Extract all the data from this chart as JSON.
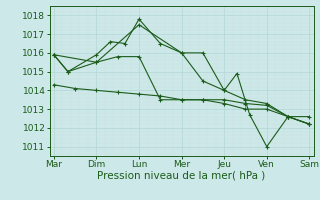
{
  "xlabel": "Pression niveau de la mer( hPa )",
  "background_color": "#cde8e8",
  "grid_color_major": "#b8d8d8",
  "grid_color_minor": "#cce0e0",
  "line_color": "#1a5c1a",
  "text_color": "#1a5c1a",
  "x_labels": [
    "Mar",
    "Dim",
    "Lun",
    "Mer",
    "Jeu",
    "Ven",
    "Sam"
  ],
  "x_positions": [
    0,
    1,
    2,
    3,
    4,
    5,
    6
  ],
  "xlim": [
    -0.1,
    6.1
  ],
  "ylim": [
    1010.5,
    1018.5
  ],
  "yticks": [
    1011,
    1012,
    1013,
    1014,
    1015,
    1016,
    1017,
    1018
  ],
  "lines": [
    {
      "x": [
        0,
        0.33,
        1.0,
        1.33,
        1.67,
        2.0,
        2.5,
        3.0,
        3.5,
        4.0,
        4.5,
        5.0,
        5.5,
        6.0
      ],
      "y": [
        1015.9,
        1015.0,
        1015.9,
        1016.6,
        1016.5,
        1017.8,
        1016.5,
        1016.0,
        1016.0,
        1014.0,
        1013.5,
        1013.3,
        1012.6,
        1012.6
      ],
      "marker": true
    },
    {
      "x": [
        0,
        0.33,
        1.0,
        1.5,
        2.0,
        2.5,
        3.0,
        3.5,
        4.0,
        4.5,
        5.0,
        5.5,
        6.0
      ],
      "y": [
        1015.9,
        1015.0,
        1015.5,
        1015.8,
        1015.8,
        1013.5,
        1013.5,
        1013.5,
        1013.5,
        1013.3,
        1013.2,
        1012.6,
        1012.2
      ],
      "marker": true
    },
    {
      "x": [
        0,
        0.5,
        1.0,
        1.5,
        2.0,
        2.5,
        3.0,
        3.5,
        4.0,
        4.5,
        5.0,
        5.5,
        6.0
      ],
      "y": [
        1014.3,
        1014.1,
        1014.0,
        1013.9,
        1013.8,
        1013.7,
        1013.5,
        1013.5,
        1013.3,
        1013.0,
        1013.0,
        1012.6,
        1012.2
      ],
      "marker": true
    },
    {
      "x": [
        0,
        1.0,
        2.0,
        3.0,
        3.5,
        4.0,
        4.3,
        4.6,
        5.0,
        5.5,
        6.0
      ],
      "y": [
        1015.9,
        1015.5,
        1017.5,
        1016.0,
        1014.5,
        1014.0,
        1014.9,
        1012.7,
        1011.0,
        1012.6,
        1012.2
      ],
      "marker": true
    }
  ]
}
